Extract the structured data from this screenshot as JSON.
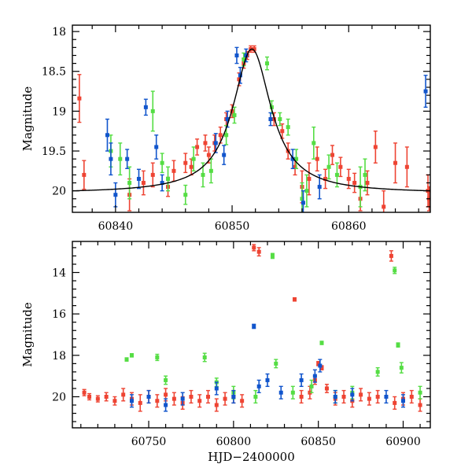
{
  "chart_data": [
    {
      "type": "scatter",
      "ylabel": "Magnitude",
      "xlabel": "",
      "xlim": [
        60836.3,
        60867.0
      ],
      "ylim": [
        20.27,
        17.92
      ],
      "y_inverted": true,
      "xticks": [
        60840,
        60850,
        60860
      ],
      "yticks": [
        18,
        18.5,
        19,
        19.5,
        20
      ],
      "ytick_labels": [
        "18",
        "18.5",
        "19",
        "19.5",
        "20"
      ],
      "colors": {
        "red": "#ee4433",
        "green": "#55dd44",
        "blue": "#1155cc",
        "model": "#000000"
      },
      "model_curve": {
        "t0": 60851.7,
        "baseline": 20.03,
        "peak": 18.22,
        "width": 2.0
      },
      "series": [
        {
          "color": "#ee4433",
          "points": [
            [
              60836.9,
              18.84,
              0.3
            ],
            [
              60837.3,
              19.8,
              0.18
            ],
            [
              60841.2,
              20.05,
              0.2
            ],
            [
              60842.4,
              19.9,
              0.15
            ],
            [
              60843.2,
              19.8,
              0.15
            ],
            [
              60844.5,
              19.95,
              0.12
            ],
            [
              60845.0,
              19.75,
              0.13
            ],
            [
              60846.0,
              19.65,
              0.12
            ],
            [
              60846.5,
              19.7,
              0.1
            ],
            [
              60847.0,
              19.45,
              0.1
            ],
            [
              60847.7,
              19.4,
              0.1
            ],
            [
              60848.0,
              19.55,
              0.1
            ],
            [
              60848.5,
              19.4,
              0.1
            ],
            [
              60849.0,
              19.3,
              0.1
            ],
            [
              60849.5,
              19.1,
              0.08
            ],
            [
              60850.0,
              19.0,
              0.08
            ],
            [
              60850.6,
              18.6,
              0.08
            ],
            [
              60851.0,
              18.4,
              0.06
            ],
            [
              60851.3,
              18.3,
              0.05
            ],
            [
              60851.6,
              18.22,
              0.04
            ],
            [
              60851.9,
              18.22,
              0.04
            ],
            [
              60853.6,
              19.1,
              0.08
            ],
            [
              60854.3,
              19.25,
              0.09
            ],
            [
              60854.8,
              19.5,
              0.1
            ],
            [
              60855.4,
              19.7,
              0.1
            ],
            [
              60856.0,
              19.95,
              0.2
            ],
            [
              60856.6,
              19.85,
              0.2
            ],
            [
              60857.3,
              19.6,
              0.15
            ],
            [
              60858.0,
              19.85,
              0.12
            ],
            [
              60858.6,
              19.55,
              0.12
            ],
            [
              60859.3,
              19.7,
              0.12
            ],
            [
              60860.0,
              19.85,
              0.12
            ],
            [
              60860.5,
              19.9,
              0.12
            ],
            [
              60861.0,
              20.1,
              0.15
            ],
            [
              60861.6,
              19.9,
              0.15
            ],
            [
              60862.3,
              19.45,
              0.2
            ],
            [
              60863.0,
              20.2,
              0.2
            ],
            [
              60864.0,
              19.65,
              0.25
            ],
            [
              60865.0,
              19.7,
              0.25
            ],
            [
              60866.8,
              20.0,
              0.2
            ],
            [
              60866.9,
              20.1,
              0.15
            ]
          ]
        },
        {
          "color": "#55dd44",
          "points": [
            [
              60839.6,
              19.5,
              0.2
            ],
            [
              60840.4,
              19.6,
              0.2
            ],
            [
              60841.2,
              19.9,
              0.2
            ],
            [
              60843.2,
              19.0,
              0.25
            ],
            [
              60844.0,
              19.65,
              0.12
            ],
            [
              60844.5,
              19.85,
              0.15
            ],
            [
              60846.0,
              20.05,
              0.12
            ],
            [
              60846.7,
              19.6,
              0.15
            ],
            [
              60847.5,
              19.8,
              0.15
            ],
            [
              60848.2,
              19.75,
              0.15
            ],
            [
              60849.5,
              19.3,
              0.12
            ],
            [
              60850.2,
              19.05,
              0.1
            ],
            [
              60851.0,
              18.35,
              0.08
            ],
            [
              60853.0,
              18.4,
              0.08
            ],
            [
              60853.4,
              18.95,
              0.08
            ],
            [
              60854.1,
              19.1,
              0.08
            ],
            [
              60854.8,
              19.2,
              0.1
            ],
            [
              60855.5,
              19.6,
              0.12
            ],
            [
              60856.0,
              20.1,
              0.2
            ],
            [
              60856.4,
              20.0,
              0.2
            ],
            [
              60857.0,
              19.4,
              0.2
            ],
            [
              60858.3,
              19.7,
              0.15
            ],
            [
              60859.0,
              19.8,
              0.15
            ],
            [
              60861.0,
              19.95,
              0.25
            ],
            [
              60861.4,
              19.8,
              0.2
            ]
          ]
        },
        {
          "color": "#1155cc",
          "points": [
            [
              60839.3,
              19.3,
              0.2
            ],
            [
              60839.6,
              19.6,
              0.2
            ],
            [
              60840.0,
              20.05,
              0.15
            ],
            [
              60841.0,
              19.6,
              0.12
            ],
            [
              60842.0,
              19.85,
              0.12
            ],
            [
              60842.6,
              18.95,
              0.1
            ],
            [
              60843.5,
              19.45,
              0.15
            ],
            [
              60844.0,
              19.9,
              0.1
            ],
            [
              60848.6,
              19.4,
              0.12
            ],
            [
              60849.3,
              19.55,
              0.12
            ],
            [
              60849.6,
              19.1,
              0.1
            ],
            [
              60850.4,
              18.3,
              0.1
            ],
            [
              60850.7,
              18.55,
              0.1
            ],
            [
              60851.2,
              18.3,
              0.08
            ],
            [
              60853.3,
              19.1,
              0.08
            ],
            [
              60855.2,
              19.6,
              0.12
            ],
            [
              60856.1,
              20.15,
              0.15
            ],
            [
              60857.5,
              19.95,
              0.15
            ],
            [
              60866.6,
              18.75,
              0.2
            ]
          ]
        }
      ]
    },
    {
      "type": "scatter",
      "ylabel": "Magnitude",
      "xlabel": "HJD−2400000",
      "xlim": [
        60705,
        60916
      ],
      "ylim": [
        21.5,
        12.5
      ],
      "y_inverted": true,
      "xticks": [
        60750,
        60800,
        60850,
        60900
      ],
      "yticks": [
        14,
        16,
        18,
        20
      ],
      "ytick_labels": [
        "14",
        "16",
        "18",
        "20"
      ],
      "colors": {
        "red": "#ee4433",
        "green": "#55dd44",
        "blue": "#1155cc"
      },
      "series": [
        {
          "color": "#ee4433",
          "points": [
            [
              60712,
              19.8,
              0.15
            ],
            [
              60715,
              20.0,
              0.15
            ],
            [
              60720,
              20.1,
              0.15
            ],
            [
              60725,
              20.0,
              0.2
            ],
            [
              60730,
              20.2,
              0.2
            ],
            [
              60735,
              19.9,
              0.3
            ],
            [
              60740,
              20.1,
              0.3
            ],
            [
              60745,
              20.3,
              0.4
            ],
            [
              60750,
              20.0,
              0.3
            ],
            [
              60755,
              20.2,
              0.3
            ],
            [
              60760,
              19.9,
              0.3
            ],
            [
              60765,
              20.1,
              0.3
            ],
            [
              60770,
              20.3,
              0.3
            ],
            [
              60775,
              20.0,
              0.3
            ],
            [
              60780,
              20.2,
              0.3
            ],
            [
              60785,
              20.0,
              0.3
            ],
            [
              60790,
              20.4,
              0.3
            ],
            [
              60795,
              20.1,
              0.3
            ],
            [
              60800,
              20.0,
              0.3
            ],
            [
              60805,
              20.2,
              0.3
            ],
            [
              60812,
              12.8,
              0.15
            ],
            [
              60815,
              13.0,
              0.2
            ],
            [
              60836,
              15.3,
              0.08
            ],
            [
              60840,
              20.0,
              0.3
            ],
            [
              60845,
              19.8,
              0.3
            ],
            [
              60848,
              19.2,
              0.2
            ],
            [
              60850,
              18.4,
              0.1
            ],
            [
              60852,
              18.6,
              0.1
            ],
            [
              60855,
              19.6,
              0.2
            ],
            [
              60860,
              20.1,
              0.3
            ],
            [
              60865,
              20.0,
              0.3
            ],
            [
              60870,
              20.2,
              0.3
            ],
            [
              60875,
              19.9,
              0.3
            ],
            [
              60880,
              20.1,
              0.3
            ],
            [
              60885,
              20.0,
              0.3
            ],
            [
              60893,
              13.2,
              0.25
            ],
            [
              60895,
              20.3,
              0.3
            ],
            [
              60900,
              20.1,
              0.3
            ],
            [
              60905,
              20.0,
              0.3
            ],
            [
              60910,
              20.4,
              0.3
            ]
          ]
        },
        {
          "color": "#55dd44",
          "points": [
            [
              60737,
              18.2,
              0.08
            ],
            [
              60740,
              18.0,
              0.08
            ],
            [
              60755,
              18.1,
              0.15
            ],
            [
              60760,
              19.2,
              0.2
            ],
            [
              60783,
              18.1,
              0.2
            ],
            [
              60790,
              19.3,
              0.2
            ],
            [
              60800,
              19.8,
              0.3
            ],
            [
              60813,
              20.0,
              0.3
            ],
            [
              60823,
              13.2,
              0.12
            ],
            [
              60825,
              18.4,
              0.2
            ],
            [
              60835,
              19.8,
              0.3
            ],
            [
              60846,
              19.5,
              0.3
            ],
            [
              60852,
              17.4,
              0.08
            ],
            [
              60860,
              20.0,
              0.3
            ],
            [
              60870,
              19.8,
              0.3
            ],
            [
              60885,
              18.8,
              0.2
            ],
            [
              60895,
              13.9,
              0.15
            ],
            [
              60897,
              17.5,
              0.1
            ],
            [
              60899,
              18.6,
              0.25
            ],
            [
              60910,
              19.8,
              0.3
            ]
          ]
        },
        {
          "color": "#1155cc",
          "points": [
            [
              60740,
              20.2,
              0.3
            ],
            [
              60750,
              20.0,
              0.3
            ],
            [
              60760,
              20.4,
              0.3
            ],
            [
              60770,
              20.1,
              0.3
            ],
            [
              60790,
              19.6,
              0.3
            ],
            [
              60800,
              20.0,
              0.3
            ],
            [
              60812,
              16.6,
              0.1
            ],
            [
              60815,
              19.5,
              0.3
            ],
            [
              60820,
              19.2,
              0.3
            ],
            [
              60828,
              19.8,
              0.3
            ],
            [
              60840,
              19.2,
              0.3
            ],
            [
              60848,
              19.0,
              0.3
            ],
            [
              60851,
              18.5,
              0.3
            ],
            [
              60860,
              20.0,
              0.3
            ],
            [
              60870,
              19.9,
              0.3
            ],
            [
              60890,
              20.0,
              0.3
            ],
            [
              60900,
              20.2,
              0.3
            ]
          ]
        }
      ]
    }
  ]
}
